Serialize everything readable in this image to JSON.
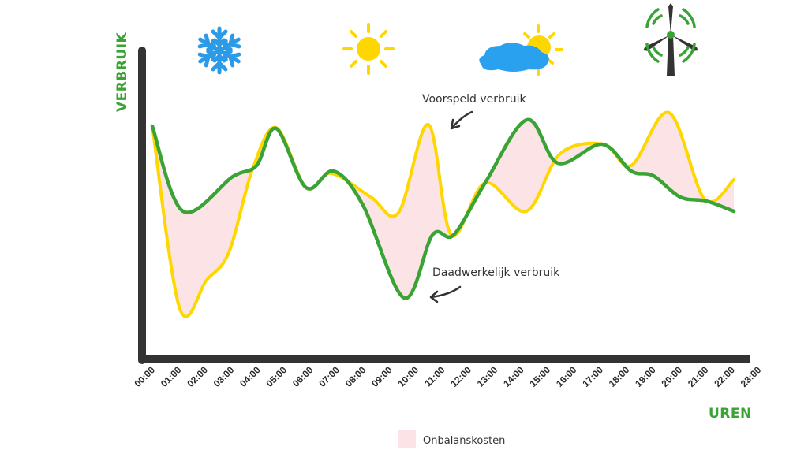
{
  "chart_data": {
    "type": "line",
    "title": "",
    "xlabel": "UREN",
    "ylabel": "VERBRUIK",
    "x_tick_labels": [
      "00:00",
      "01:00",
      "02:00",
      "03:00",
      "04:00",
      "05:00",
      "06:00",
      "07:00",
      "08:00",
      "09:00",
      "10:00",
      "11:00",
      "12:00",
      "13:00",
      "14:00",
      "15:00",
      "16:00",
      "17:00",
      "18:00",
      "19:00",
      "20:00",
      "21:00",
      "22:00",
      "23:00"
    ],
    "xlim": [
      0,
      23
    ],
    "ylim": [
      0,
      100
    ],
    "y_ticks": "none (relative scale)",
    "grid": false,
    "series": [
      {
        "name": "Voorspeld verbruik",
        "color": "#ffd700",
        "x": [
          0,
          1.07,
          2.11,
          2.97,
          3.88,
          4.8,
          5.96,
          6.94,
          8.47,
          9.54,
          10.7,
          11.59,
          12.9,
          14.5,
          15.81,
          17.49,
          18.56,
          20.03,
          21.41,
          22.54
        ],
        "y": [
          75,
          17,
          26.25,
          35,
          61.25,
          74.5,
          55.5,
          60,
          52.5,
          47.5,
          75.5,
          40.5,
          57,
          48,
          66.25,
          69.25,
          62.5,
          79.25,
          51.75,
          58
        ]
      },
      {
        "name": "Daadwerkelijk verbruik",
        "color": "#3aa335",
        "x": [
          0,
          1.19,
          3.12,
          4.04,
          4.8,
          5.96,
          7.03,
          8.16,
          9.76,
          10.86,
          11.68,
          12.9,
          14.52,
          15.72,
          17.43,
          18.56,
          19.42,
          20.46,
          21.47,
          22.54
        ],
        "y": [
          75,
          48,
          59,
          62.5,
          74.25,
          55.5,
          60.75,
          50,
          20.5,
          40.5,
          40.5,
          57,
          77,
          63.25,
          69.25,
          60.75,
          59.25,
          52.5,
          51.25,
          48
        ]
      }
    ],
    "fill_between": {
      "name": "Onbalanskosten",
      "color": "#fce4e6"
    },
    "legend": {
      "placement": "bottom-center",
      "entries": [
        "Onbalanskosten"
      ]
    },
    "annotations": [
      "Voorspeld verbruik",
      "Daadwerkelijk verbruik"
    ],
    "icons": [
      "snowflake-icon",
      "sun-icon",
      "cloud-sun-icon",
      "wind-turbine-icon"
    ],
    "colors": {
      "axis": "#333333",
      "snow": "#2b9be8",
      "sun": "#ffd700",
      "cloud": "#29a1ee",
      "turbine": "#333333",
      "turbine_waves": "#3aa335"
    }
  }
}
